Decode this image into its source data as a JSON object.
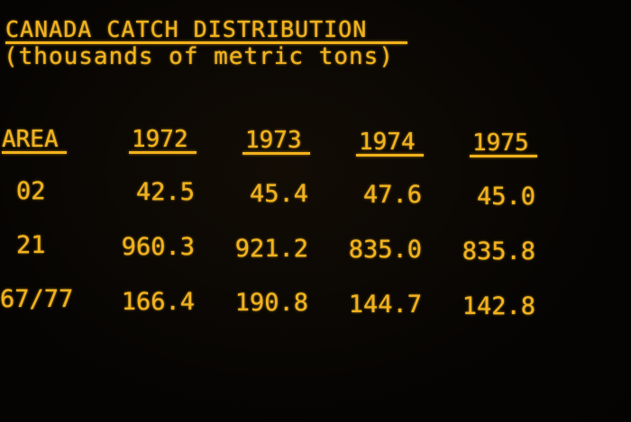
{
  "title": "CANADA CATCH DISTRIBUTION",
  "subtitle": "(thousands of metric tons)",
  "table": {
    "headers": [
      "AREA",
      "1972",
      "1973",
      "1974",
      "1975"
    ],
    "rows": [
      {
        "area": "02",
        "values": [
          "42.5",
          "45.4",
          "47.6",
          "45.0"
        ]
      },
      {
        "area": "21",
        "values": [
          "960.3",
          "921.2",
          "835.0",
          "835.8"
        ]
      },
      {
        "area": "67/77",
        "values": [
          "166.4",
          "190.8",
          "144.7",
          "142.8"
        ]
      }
    ]
  },
  "colors": {
    "text": "#f2b21c",
    "background": "#070503"
  }
}
